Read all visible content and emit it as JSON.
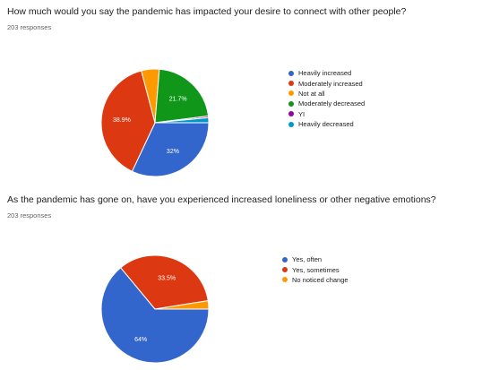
{
  "questions": [
    {
      "title": "How much would you say the pandemic has impacted your desire to connect with other people?",
      "responses": "203 responses"
    },
    {
      "title": "As the pandemic has gone on, have you experienced increased loneliness or other negative emotions?",
      "responses": "203 responses"
    }
  ],
  "chart_data": [
    {
      "type": "pie",
      "title": "How much would you say the pandemic has impacted your desire to connect with other people?",
      "labels": [
        "Heavily increased",
        "Moderately increased",
        "Not at all",
        "Moderately decreased",
        "YI",
        "Heavily decreased"
      ],
      "values": [
        32,
        38.9,
        5.4,
        21.7,
        0.5,
        1.5
      ],
      "slice_labels": [
        "32%",
        "38.9%",
        "",
        "21.7%",
        "",
        ""
      ],
      "colors": [
        "#3366cc",
        "#dc3912",
        "#ff9900",
        "#109618",
        "#990099",
        "#0099c6"
      ],
      "legend_position": "right"
    },
    {
      "type": "pie",
      "title": "As the pandemic has gone on, have you experienced increased loneliness or other negative emotions?",
      "labels": [
        "Yes, often",
        "Yes, sometimes",
        "No noticed change"
      ],
      "values": [
        64,
        33.5,
        2.5
      ],
      "slice_labels": [
        "64%",
        "33.5%",
        ""
      ],
      "colors": [
        "#3366cc",
        "#dc3912",
        "#ff9900"
      ],
      "legend_position": "right"
    }
  ]
}
